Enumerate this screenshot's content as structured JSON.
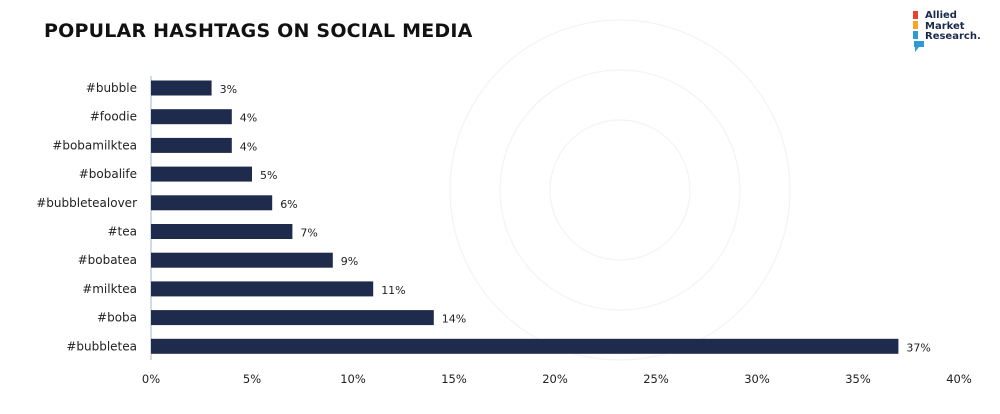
{
  "title": "POPULAR HASHTAGS ON SOCIAL MEDIA",
  "logo": {
    "lines": [
      "Allied",
      "Market",
      "Research."
    ]
  },
  "colors": {
    "bar": "#1f2b4d",
    "axis": "#9fb4d6",
    "accent": "#e8412f"
  },
  "chart_data": {
    "type": "bar",
    "orientation": "horizontal",
    "categories": [
      "#bubble",
      "#foodie",
      "#bobamilktea",
      "#bobalife",
      "#bubbletealover",
      "#tea",
      "#bobatea",
      "#milktea",
      "#boba",
      "#bubbletea"
    ],
    "values": [
      3,
      4,
      4,
      5,
      6,
      7,
      9,
      11,
      14,
      37
    ],
    "value_labels": [
      "3%",
      "4%",
      "4%",
      "5%",
      "6%",
      "7%",
      "9%",
      "11%",
      "14%",
      "37%"
    ],
    "xlim": [
      0,
      40
    ],
    "xticks": [
      0,
      5,
      10,
      15,
      20,
      25,
      30,
      35,
      40
    ],
    "xtick_labels": [
      "0%",
      "5%",
      "10%",
      "15%",
      "20%",
      "25%",
      "30%",
      "35%",
      "40%"
    ],
    "grid": false,
    "legend": "none"
  }
}
